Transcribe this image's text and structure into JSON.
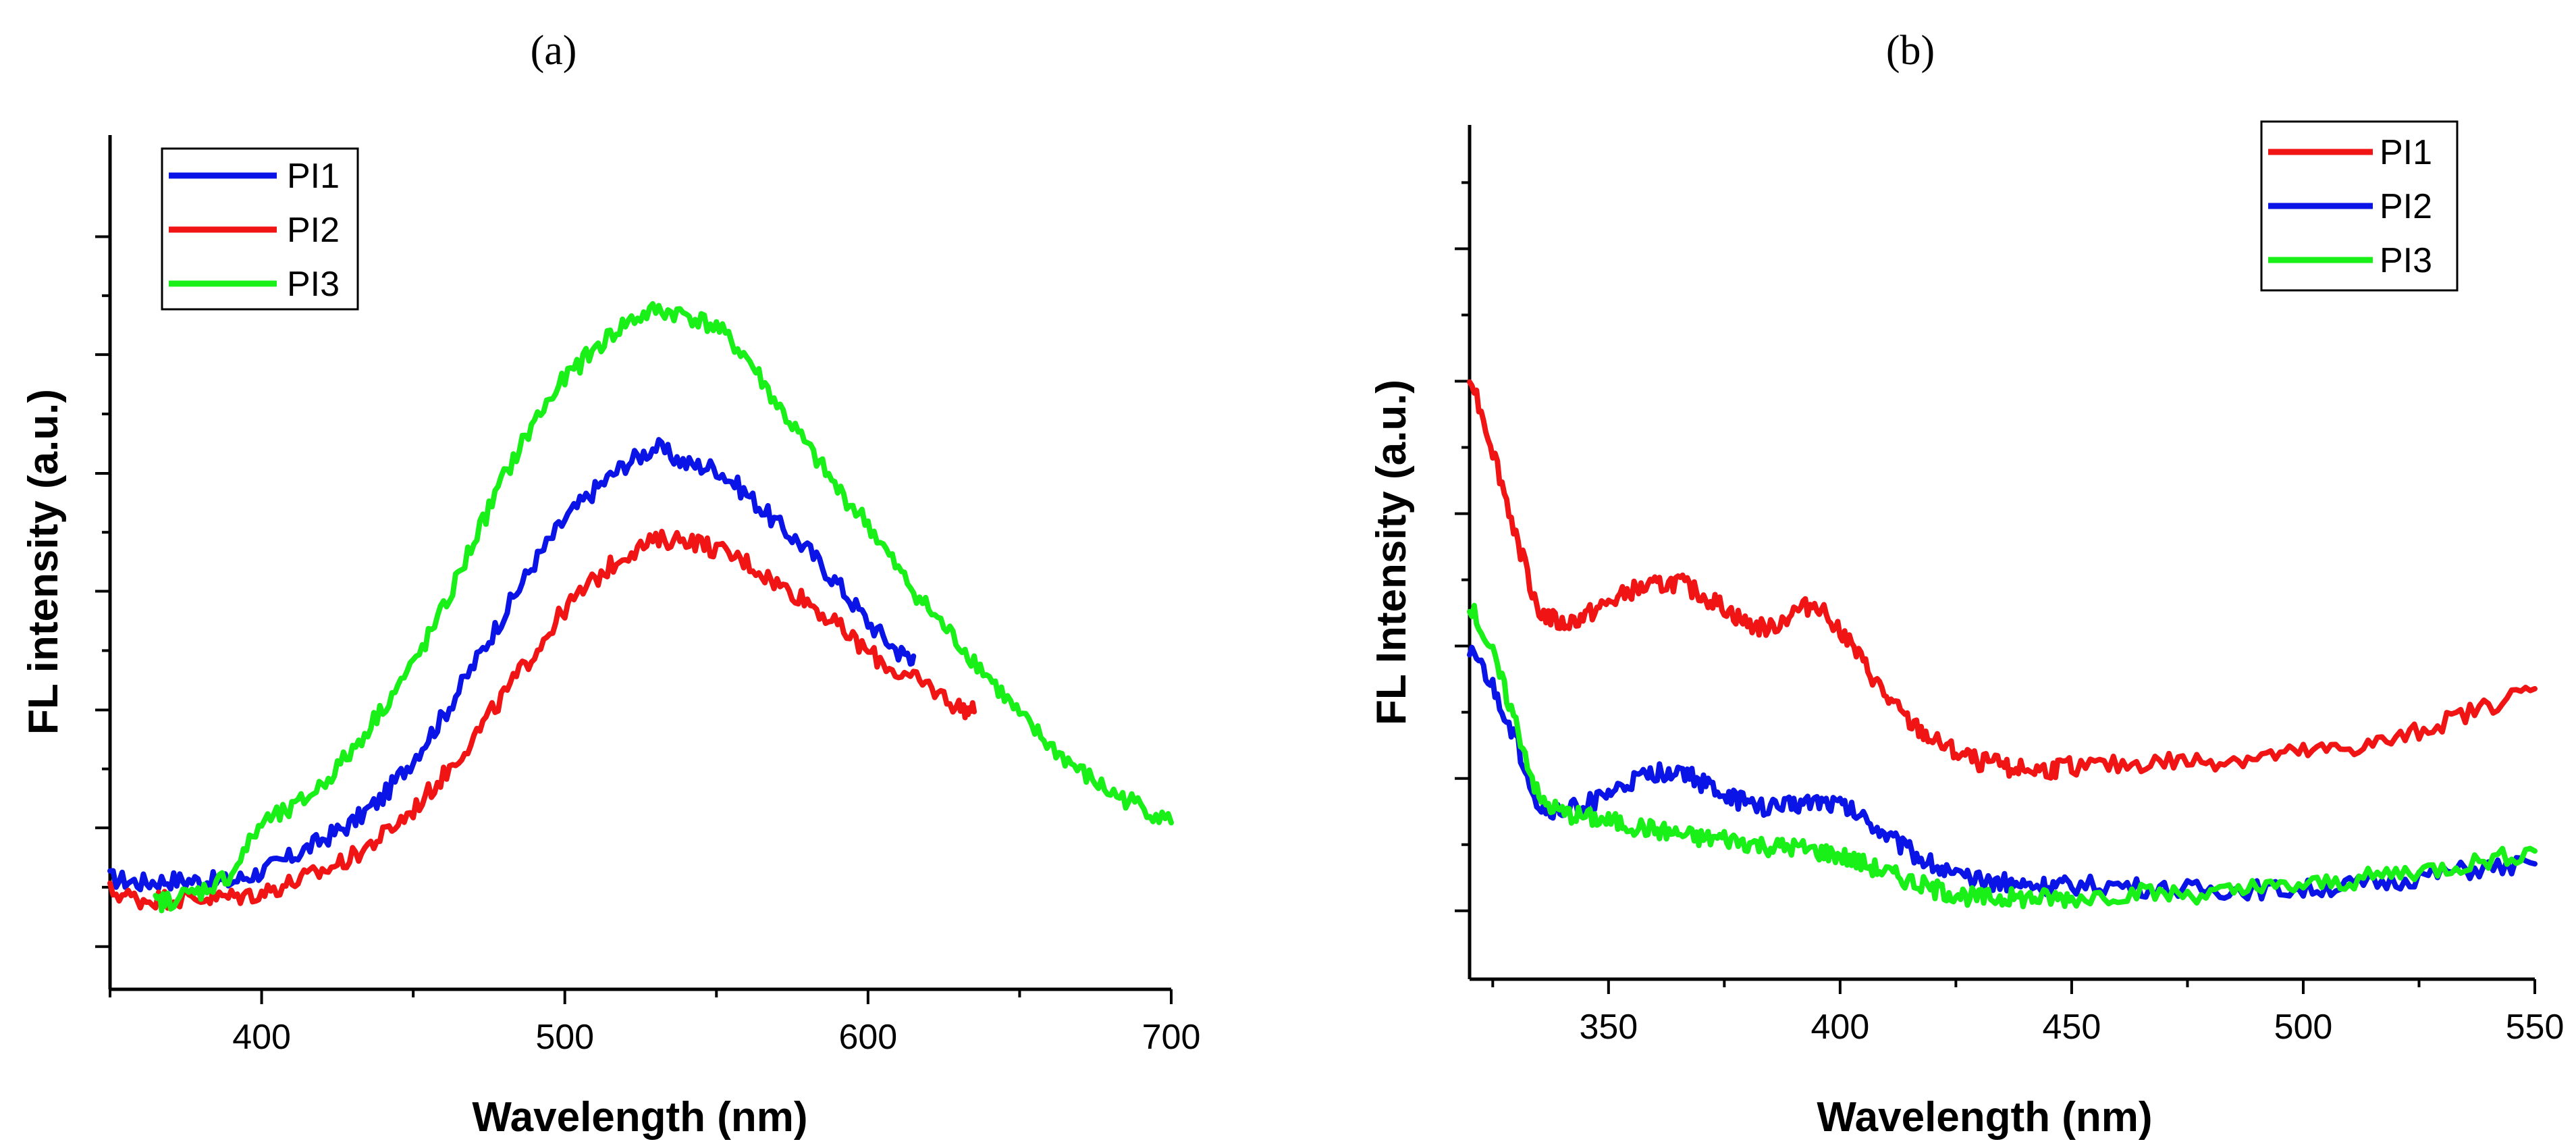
{
  "chart_data": [
    {
      "panel_label": "(a)",
      "type": "line",
      "xlabel": "Wavelength (nm)",
      "ylabel": "FL intensity (a.u.)",
      "xlim": [
        350,
        700
      ],
      "ylim": [
        0,
        100
      ],
      "xticks": [
        400,
        500,
        600,
        700
      ],
      "yticks_major": [
        5,
        18.9,
        32.7,
        46.6,
        60.4,
        74.3,
        88.1
      ],
      "ytick_labels_shown": false,
      "legend_position": "top-left",
      "series": [
        {
          "name": "PI1",
          "color": "#0a14e6",
          "x": [
            350,
            360,
            370,
            380,
            390,
            400,
            410,
            420,
            430,
            440,
            450,
            460,
            470,
            480,
            490,
            500,
            510,
            520,
            530,
            540,
            550,
            560,
            570,
            580,
            590,
            600,
            610,
            615
          ],
          "y": [
            13,
            12.5,
            12.8,
            12.7,
            12.6,
            13.8,
            15.5,
            17.5,
            19.5,
            22.5,
            27,
            32,
            38,
            44,
            50,
            55,
            58.5,
            61.5,
            63.5,
            61.5,
            61,
            58,
            54.5,
            51.5,
            47.5,
            43,
            39.5,
            39
          ]
        },
        {
          "name": "PI2",
          "color": "#f01414",
          "x": [
            350,
            360,
            370,
            380,
            390,
            400,
            410,
            420,
            430,
            440,
            450,
            460,
            470,
            480,
            490,
            500,
            510,
            520,
            530,
            540,
            550,
            560,
            570,
            580,
            590,
            600,
            610,
            620,
            630,
            635
          ],
          "y": [
            11.5,
            10.5,
            10.6,
            10.7,
            10.8,
            11.3,
            12.5,
            13.8,
            15.5,
            18,
            21,
            25,
            29.5,
            34.5,
            39.5,
            44.5,
            48,
            51,
            52.5,
            52.8,
            51.5,
            50,
            47.5,
            45.5,
            42.5,
            39.5,
            37,
            35.5,
            33,
            32.5
          ]
        },
        {
          "name": "PI3",
          "color": "#18f018",
          "x": [
            365,
            370,
            380,
            390,
            400,
            410,
            420,
            430,
            440,
            450,
            460,
            470,
            480,
            490,
            500,
            510,
            520,
            530,
            540,
            550,
            560,
            570,
            580,
            590,
            600,
            610,
            620,
            630,
            640,
            650,
            660,
            670,
            680,
            690,
            700
          ],
          "y": [
            10,
            10.5,
            11.5,
            13.5,
            19.5,
            21,
            24,
            28,
            33,
            38,
            44.5,
            52.5,
            60,
            66.5,
            71.5,
            75,
            78,
            79.5,
            79,
            77.5,
            74,
            68.5,
            63.5,
            58.5,
            54.5,
            49,
            44.5,
            40.5,
            36.5,
            32,
            28.5,
            25.5,
            23,
            21.5,
            19.5
          ]
        }
      ]
    },
    {
      "panel_label": "(b)",
      "type": "line",
      "xlabel": "Wavelength (nm)",
      "ylabel": "FL Intensity (a.u.)",
      "xlim": [
        320,
        550
      ],
      "ylim": [
        0,
        100
      ],
      "xticks": [
        350,
        400,
        450,
        500,
        550
      ],
      "yticks_major": [
        8,
        23.5,
        39,
        54.5,
        70,
        85.5,
        101
      ],
      "ytick_labels_shown": false,
      "legend_position": "top-right",
      "series": [
        {
          "name": "PI1",
          "color": "#f01414",
          "x": [
            320,
            325,
            330,
            335,
            340,
            345,
            350,
            355,
            360,
            365,
            370,
            375,
            380,
            385,
            390,
            395,
            400,
            405,
            410,
            415,
            420,
            425,
            430,
            435,
            440,
            445,
            450,
            460,
            470,
            480,
            490,
            500,
            510,
            520,
            530,
            540,
            550
          ],
          "y": [
            71,
            62,
            52,
            43,
            41.5,
            42.5,
            44,
            45.5,
            46,
            46.5,
            45,
            43.5,
            41.5,
            41,
            43,
            44,
            41,
            37,
            33,
            30,
            28,
            26.5,
            25.5,
            25,
            24.5,
            24.5,
            25,
            25,
            25.5,
            25.5,
            26,
            26.5,
            27,
            28,
            30,
            32,
            34
          ]
        },
        {
          "name": "PI2",
          "color": "#0a14e6",
          "x": [
            320,
            325,
            330,
            335,
            340,
            345,
            350,
            355,
            360,
            365,
            370,
            375,
            380,
            385,
            390,
            395,
            400,
            405,
            410,
            415,
            420,
            425,
            430,
            435,
            440,
            445,
            450,
            460,
            470,
            480,
            490,
            500,
            510,
            520,
            530,
            540,
            550
          ],
          "y": [
            39,
            34,
            28,
            20,
            19.5,
            20.5,
            21.5,
            23,
            24,
            24.5,
            23,
            21.5,
            20.5,
            20,
            20.5,
            21,
            20.5,
            19,
            17,
            15,
            13.5,
            12,
            11.5,
            11.5,
            11,
            11,
            11,
            11,
            10.5,
            10.5,
            10.5,
            10.5,
            11,
            11.5,
            12.5,
            13,
            13.5
          ]
        },
        {
          "name": "PI3",
          "color": "#18f018",
          "x": [
            320,
            325,
            330,
            335,
            340,
            345,
            350,
            355,
            360,
            365,
            370,
            375,
            380,
            385,
            390,
            395,
            400,
            405,
            410,
            415,
            420,
            425,
            430,
            435,
            440,
            445,
            450,
            460,
            470,
            480,
            490,
            500,
            510,
            520,
            530,
            540,
            550
          ],
          "y": [
            44,
            38,
            30,
            21,
            19.5,
            19,
            18.5,
            18,
            17.5,
            17,
            16.5,
            16.5,
            16,
            15.5,
            15.5,
            15,
            14.5,
            13.5,
            12.5,
            11.5,
            10.5,
            10,
            9.5,
            9.5,
            9.5,
            9.5,
            9.5,
            10,
            10,
            10,
            10.5,
            11,
            11.5,
            12.5,
            13,
            14,
            15
          ]
        }
      ]
    }
  ]
}
